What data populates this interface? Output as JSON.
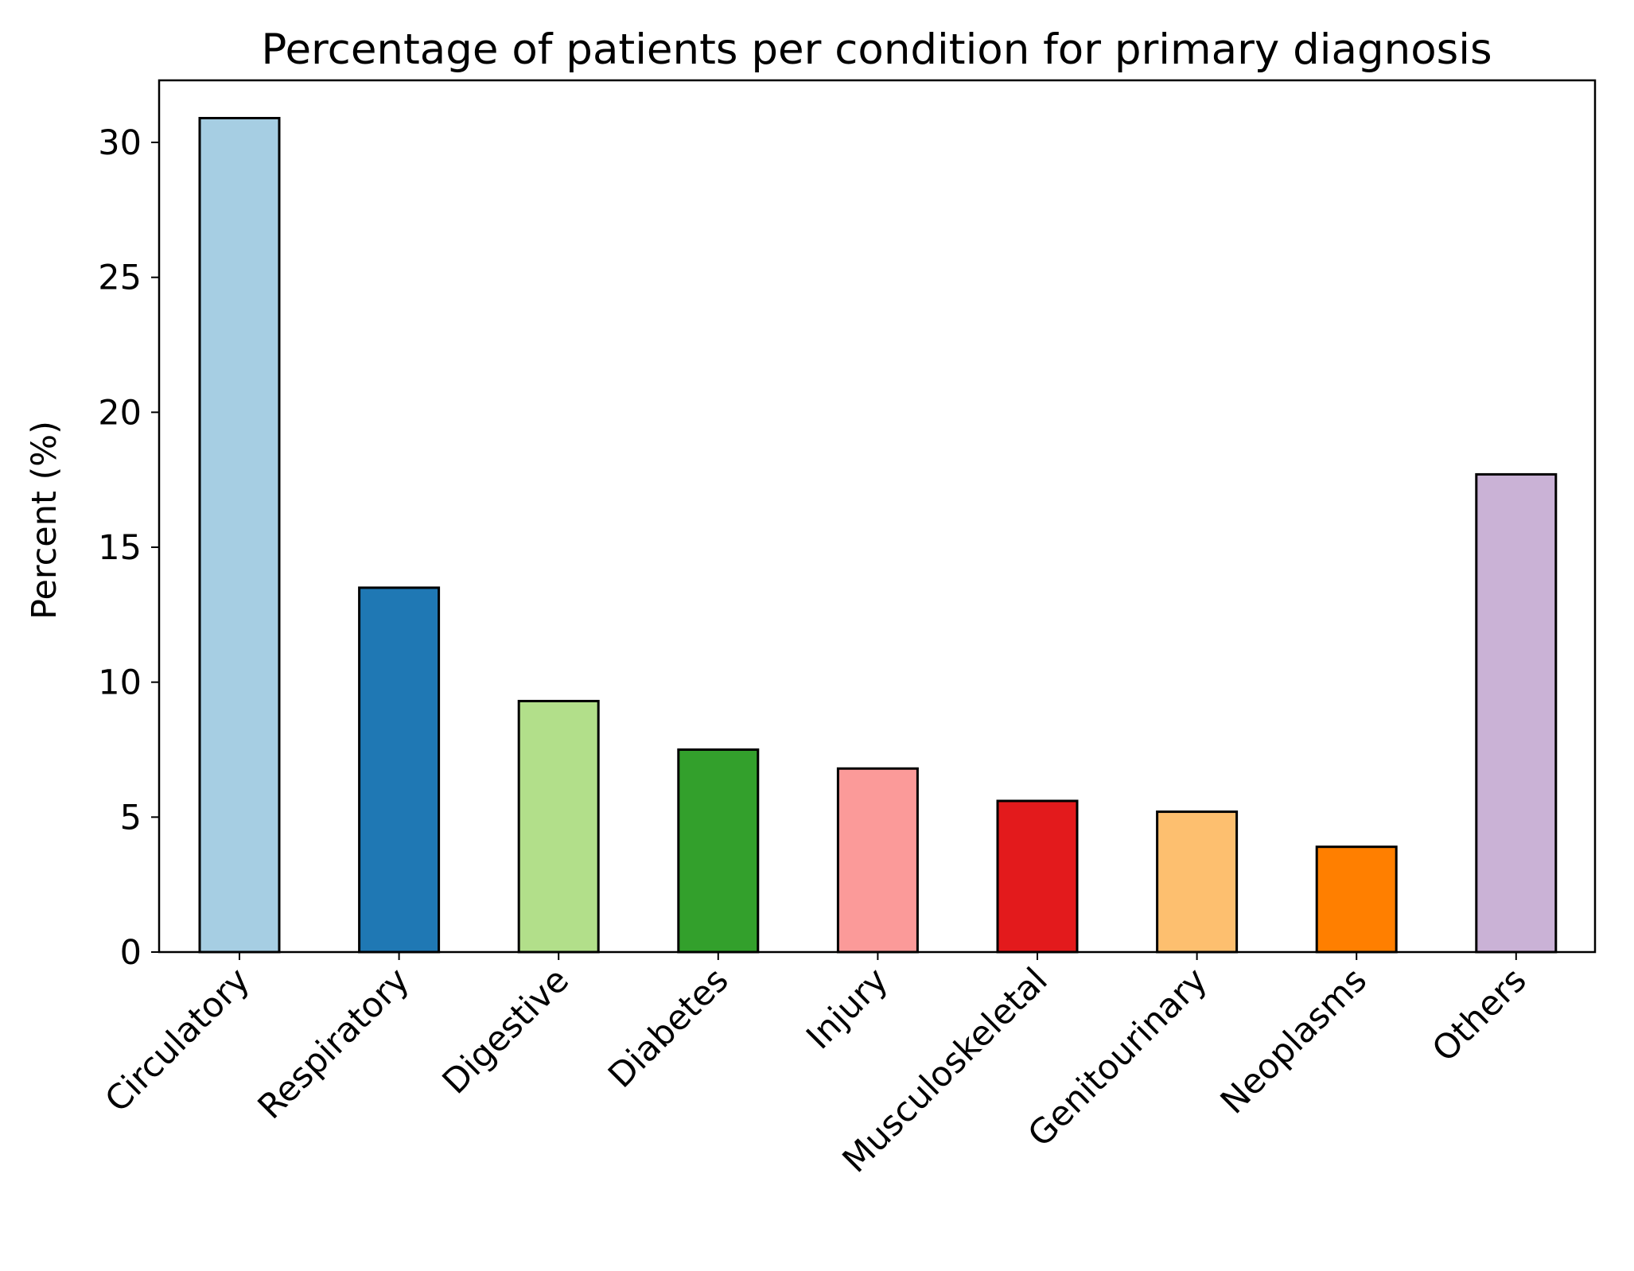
{
  "chart_data": {
    "type": "bar",
    "title": "Percentage of patients per condition for primary diagnosis",
    "xlabel": "",
    "ylabel": "Percent (%)",
    "ylim": [
      0,
      32.3
    ],
    "yticks": [
      0,
      5,
      10,
      15,
      20,
      25,
      30
    ],
    "categories": [
      "Circulatory",
      "Respiratory",
      "Digestive",
      "Diabetes",
      "Injury",
      "Musculoskeletal",
      "Genitourinary",
      "Neoplasms",
      "Others"
    ],
    "values": [
      30.9,
      13.5,
      9.3,
      7.5,
      6.8,
      5.6,
      5.2,
      3.9,
      17.7
    ],
    "colors": [
      "#a6cee3",
      "#1f78b4",
      "#b2df8a",
      "#33a02c",
      "#fb9a99",
      "#e31a1c",
      "#fdbf6f",
      "#ff7f00",
      "#cab2d6"
    ],
    "edge_color": "#000000",
    "grid": false,
    "legend": "none"
  }
}
